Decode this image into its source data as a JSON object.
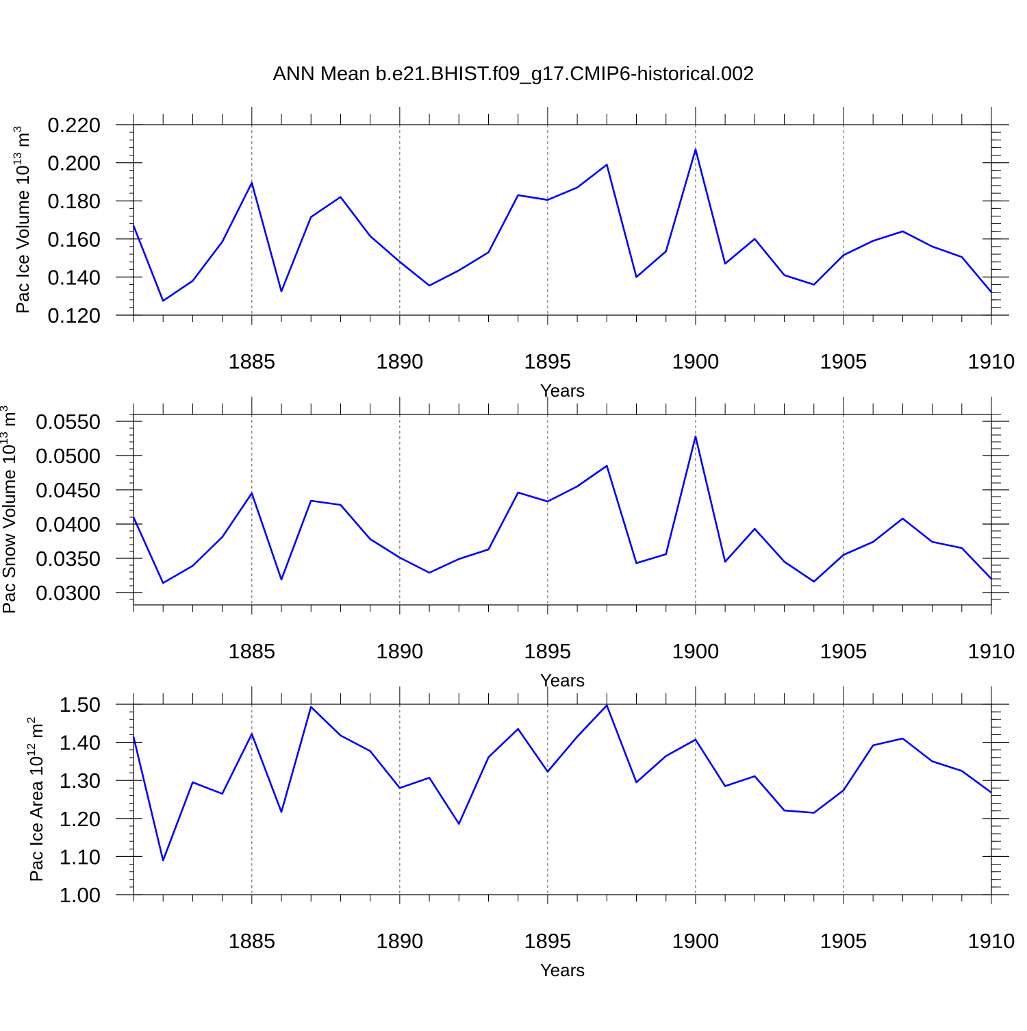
{
  "figure": {
    "title": "ANN Mean b.e21.BHIST.f09_g17.CMIP6-historical.002",
    "line_color": "#0000ff"
  },
  "chart_data": [
    {
      "type": "line",
      "title": "",
      "xlabel": "Years",
      "ylabel_main": "Pac Ice Volume 10",
      "ylabel_exp": "13",
      "ylabel_unit": "m",
      "ylabel_unit_exp": "3",
      "xlim": [
        1881,
        1910
      ],
      "ylim": [
        0.12,
        0.22
      ],
      "yticks": [
        0.12,
        0.14,
        0.16,
        0.18,
        0.2,
        0.22
      ],
      "ytick_labels": [
        "0.120",
        "0.140",
        "0.160",
        "0.180",
        "0.200",
        "0.220"
      ],
      "xticks": [
        1885,
        1890,
        1895,
        1900,
        1905,
        1910
      ],
      "xtick_labels": [
        "1885",
        "1890",
        "1895",
        "1900",
        "1905",
        "1910"
      ],
      "x": [
        1881,
        1882,
        1883,
        1884,
        1885,
        1886,
        1887,
        1888,
        1889,
        1890,
        1891,
        1892,
        1893,
        1894,
        1895,
        1896,
        1897,
        1898,
        1899,
        1900,
        1901,
        1902,
        1903,
        1904,
        1905,
        1906,
        1907,
        1908,
        1909,
        1910
      ],
      "series": [
        {
          "name": "Pac Ice Volume",
          "values": [
            0.167,
            0.1275,
            0.138,
            0.1585,
            0.1895,
            0.1325,
            0.1715,
            0.182,
            0.1615,
            0.148,
            0.1355,
            0.1435,
            0.153,
            0.183,
            0.1805,
            0.187,
            0.199,
            0.14,
            0.1535,
            0.207,
            0.147,
            0.16,
            0.141,
            0.136,
            0.1515,
            0.159,
            0.164,
            0.156,
            0.1505,
            0.132
          ]
        }
      ]
    },
    {
      "type": "line",
      "title": "",
      "xlabel": "Years",
      "ylabel_main": "Pac Snow Volume 10",
      "ylabel_exp": "13",
      "ylabel_unit": "m",
      "ylabel_unit_exp": "3",
      "xlim": [
        1881,
        1910
      ],
      "ylim": [
        0.0282,
        0.056
      ],
      "yticks": [
        0.03,
        0.035,
        0.04,
        0.045,
        0.05,
        0.055
      ],
      "ytick_labels": [
        "0.0300",
        "0.0350",
        "0.0400",
        "0.0450",
        "0.0500",
        "0.0550"
      ],
      "xticks": [
        1885,
        1890,
        1895,
        1900,
        1905,
        1910
      ],
      "xtick_labels": [
        "1885",
        "1890",
        "1895",
        "1900",
        "1905",
        "1910"
      ],
      "x": [
        1881,
        1882,
        1883,
        1884,
        1885,
        1886,
        1887,
        1888,
        1889,
        1890,
        1891,
        1892,
        1893,
        1894,
        1895,
        1896,
        1897,
        1898,
        1899,
        1900,
        1901,
        1902,
        1903,
        1904,
        1905,
        1906,
        1907,
        1908,
        1909,
        1910
      ],
      "series": [
        {
          "name": "Pac Snow Volume",
          "values": [
            0.041,
            0.0314,
            0.0339,
            0.0381,
            0.0445,
            0.0319,
            0.0434,
            0.0428,
            0.0378,
            0.0351,
            0.0329,
            0.0349,
            0.0363,
            0.0446,
            0.0433,
            0.0455,
            0.0485,
            0.0343,
            0.0356,
            0.0528,
            0.0345,
            0.0393,
            0.0345,
            0.0316,
            0.0355,
            0.0374,
            0.0408,
            0.0374,
            0.0365,
            0.032
          ]
        }
      ]
    },
    {
      "type": "line",
      "title": "",
      "xlabel": "Years",
      "ylabel_main": "Pac Ice Area 10",
      "ylabel_exp": "12",
      "ylabel_unit": "m",
      "ylabel_unit_exp": "2",
      "xlim": [
        1881,
        1910
      ],
      "ylim": [
        1.0,
        1.5
      ],
      "yticks": [
        1.0,
        1.1,
        1.2,
        1.3,
        1.4,
        1.5
      ],
      "ytick_labels": [
        "1.00",
        "1.10",
        "1.20",
        "1.30",
        "1.40",
        "1.50"
      ],
      "xticks": [
        1885,
        1890,
        1895,
        1900,
        1905,
        1910
      ],
      "xtick_labels": [
        "1885",
        "1890",
        "1895",
        "1900",
        "1905",
        "1910"
      ],
      "x": [
        1881,
        1882,
        1883,
        1884,
        1885,
        1886,
        1887,
        1888,
        1889,
        1890,
        1891,
        1892,
        1893,
        1894,
        1895,
        1896,
        1897,
        1898,
        1899,
        1900,
        1901,
        1902,
        1903,
        1904,
        1905,
        1906,
        1907,
        1908,
        1909,
        1910
      ],
      "series": [
        {
          "name": "Pac Ice Area",
          "values": [
            1.415,
            1.09,
            1.295,
            1.265,
            1.422,
            1.217,
            1.493,
            1.418,
            1.377,
            1.28,
            1.307,
            1.186,
            1.361,
            1.435,
            1.323,
            1.415,
            1.497,
            1.295,
            1.364,
            1.407,
            1.285,
            1.311,
            1.221,
            1.215,
            1.274,
            1.392,
            1.41,
            1.35,
            1.325,
            1.268
          ]
        }
      ]
    }
  ]
}
